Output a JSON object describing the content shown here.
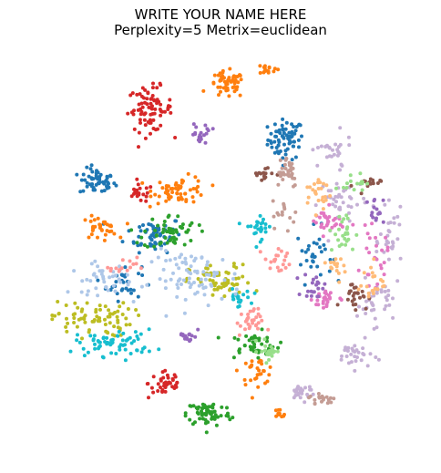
{
  "chart_data": {
    "type": "scatter",
    "title": "WRITE YOUR NAME HERE",
    "subtitle": "Perplexity=5 Metrix=euclidean",
    "xlabel": "",
    "ylabel": "",
    "axes_visible": false,
    "grid": false,
    "legend": "none",
    "xlim": [
      0,
      100
    ],
    "ylim": [
      0,
      100
    ],
    "marker_size": 2,
    "clusters": [
      {
        "color": "#1f77b4",
        "center": [
          66.0,
          78.5
        ],
        "spread": [
          4.0,
          4.5
        ],
        "count": 70
      },
      {
        "color": "#1f77b4",
        "center": [
          19.5,
          68.0
        ],
        "spread": [
          4.0,
          3.0
        ],
        "count": 55
      },
      {
        "color": "#1f77b4",
        "center": [
          33.5,
          55.0
        ],
        "spread": [
          6.5,
          4.0
        ],
        "count": 60
      },
      {
        "color": "#1f77b4",
        "center": [
          73.0,
          50.0
        ],
        "spread": [
          4.0,
          6.0
        ],
        "count": 30
      },
      {
        "color": "#1f77b4",
        "center": [
          26.0,
          43.0
        ],
        "spread": [
          4.0,
          4.0
        ],
        "count": 30
      },
      {
        "color": "#d62728",
        "center": [
          32.5,
          86.0
        ],
        "spread": [
          5.0,
          5.0
        ],
        "count": 80
      },
      {
        "color": "#d62728",
        "center": [
          36.5,
          18.0
        ],
        "spread": [
          4.0,
          3.5
        ],
        "count": 40
      },
      {
        "color": "#d62728",
        "center": [
          30.0,
          65.0
        ],
        "spread": [
          3.0,
          2.0
        ],
        "count": 20
      },
      {
        "color": "#ff7f0e",
        "center": [
          51.5,
          92.0
        ],
        "spread": [
          4.0,
          3.0
        ],
        "count": 55
      },
      {
        "color": "#ff7f0e",
        "center": [
          40.0,
          66.0
        ],
        "spread": [
          6.0,
          3.0
        ],
        "count": 60
      },
      {
        "color": "#ff7f0e",
        "center": [
          59.0,
          21.0
        ],
        "spread": [
          4.0,
          3.0
        ],
        "count": 30
      },
      {
        "color": "#ff7f0e",
        "center": [
          20.0,
          56.5
        ],
        "spread": [
          4.0,
          2.5
        ],
        "count": 35
      },
      {
        "color": "#ff7f0e",
        "center": [
          61.0,
          96.0
        ],
        "spread": [
          2.5,
          1.5
        ],
        "count": 15
      },
      {
        "color": "#ff7f0e",
        "center": [
          64.0,
          10.0
        ],
        "spread": [
          2.0,
          1.5
        ],
        "count": 10
      },
      {
        "color": "#2ca02c",
        "center": [
          47.0,
          10.5
        ],
        "spread": [
          5.0,
          3.0
        ],
        "count": 70
      },
      {
        "color": "#2ca02c",
        "center": [
          37.5,
          55.5
        ],
        "spread": [
          6.0,
          4.0
        ],
        "count": 55
      },
      {
        "color": "#2ca02c",
        "center": [
          58.0,
          27.5
        ],
        "spread": [
          6.0,
          3.0
        ],
        "count": 45
      },
      {
        "color": "#bcbd22",
        "center": [
          18.0,
          34.0
        ],
        "spread": [
          9.0,
          4.0
        ],
        "count": 75
      },
      {
        "color": "#bcbd22",
        "center": [
          50.0,
          43.0
        ],
        "spread": [
          7.0,
          4.0
        ],
        "count": 60
      },
      {
        "color": "#17becf",
        "center": [
          24.0,
          28.0
        ],
        "spread": [
          9.0,
          3.0
        ],
        "count": 65
      },
      {
        "color": "#17becf",
        "center": [
          54.0,
          39.0
        ],
        "spread": [
          3.0,
          2.0
        ],
        "count": 20
      },
      {
        "color": "#17becf",
        "center": [
          59.5,
          57.0
        ],
        "spread": [
          3.0,
          3.0
        ],
        "count": 25
      },
      {
        "color": "#aec7e8",
        "center": [
          44.0,
          44.0
        ],
        "spread": [
          10.0,
          6.0
        ],
        "count": 80
      },
      {
        "color": "#aec7e8",
        "center": [
          20.5,
          44.0
        ],
        "spread": [
          7.0,
          3.5
        ],
        "count": 40
      },
      {
        "color": "#c5b0d5",
        "center": [
          80.0,
          63.0
        ],
        "spread": [
          5.0,
          6.0
        ],
        "count": 40
      },
      {
        "color": "#c5b0d5",
        "center": [
          88.0,
          38.0
        ],
        "spread": [
          4.0,
          5.0
        ],
        "count": 35
      },
      {
        "color": "#c5b0d5",
        "center": [
          83.0,
          25.0
        ],
        "spread": [
          4.0,
          3.0
        ],
        "count": 30
      },
      {
        "color": "#c5b0d5",
        "center": [
          70.0,
          16.0
        ],
        "spread": [
          3.0,
          2.0
        ],
        "count": 25
      },
      {
        "color": "#c5b0d5",
        "center": [
          92.0,
          53.0
        ],
        "spread": [
          2.5,
          7.0
        ],
        "count": 30
      },
      {
        "color": "#c5b0d5",
        "center": [
          77.0,
          75.0
        ],
        "spread": [
          5.0,
          4.0
        ],
        "count": 25
      },
      {
        "color": "#e377c2",
        "center": [
          76.0,
          58.0
        ],
        "spread": [
          4.0,
          3.0
        ],
        "count": 30
      },
      {
        "color": "#e377c2",
        "center": [
          76.0,
          39.0
        ],
        "spread": [
          3.0,
          3.0
        ],
        "count": 25
      },
      {
        "color": "#e377c2",
        "center": [
          88.0,
          49.0
        ],
        "spread": [
          3.0,
          6.0
        ],
        "count": 25
      },
      {
        "color": "#9467bd",
        "center": [
          45.0,
          80.0
        ],
        "spread": [
          2.5,
          2.5
        ],
        "count": 20
      },
      {
        "color": "#9467bd",
        "center": [
          73.0,
          42.0
        ],
        "spread": [
          2.5,
          3.0
        ],
        "count": 20
      },
      {
        "color": "#9467bd",
        "center": [
          88.0,
          61.0
        ],
        "spread": [
          2.0,
          3.0
        ],
        "count": 15
      },
      {
        "color": "#9467bd",
        "center": [
          42.0,
          30.0
        ],
        "spread": [
          2.0,
          2.0
        ],
        "count": 15
      },
      {
        "color": "#8c564b",
        "center": [
          83.0,
          40.0
        ],
        "spread": [
          3.0,
          3.0
        ],
        "count": 25
      },
      {
        "color": "#8c564b",
        "center": [
          86.0,
          67.0
        ],
        "spread": [
          3.0,
          2.0
        ],
        "count": 15
      },
      {
        "color": "#8c564b",
        "center": [
          60.0,
          70.0
        ],
        "spread": [
          2.5,
          2.0
        ],
        "count": 15
      },
      {
        "color": "#ff9896",
        "center": [
          57.0,
          33.0
        ],
        "spread": [
          3.0,
          3.0
        ],
        "count": 30
      },
      {
        "color": "#ff9896",
        "center": [
          26.0,
          47.0
        ],
        "spread": [
          3.0,
          2.0
        ],
        "count": 15
      },
      {
        "color": "#ff9896",
        "center": [
          64.0,
          48.0
        ],
        "spread": [
          3.0,
          3.0
        ],
        "count": 20
      },
      {
        "color": "#98df8a",
        "center": [
          80.0,
          55.0
        ],
        "spread": [
          3.0,
          5.0
        ],
        "count": 25
      },
      {
        "color": "#98df8a",
        "center": [
          62.0,
          26.0
        ],
        "spread": [
          2.5,
          2.5
        ],
        "count": 20
      },
      {
        "color": "#98df8a",
        "center": [
          83.0,
          68.0
        ],
        "spread": [
          2.5,
          2.0
        ],
        "count": 15
      },
      {
        "color": "#ffbb78",
        "center": [
          74.0,
          65.0
        ],
        "spread": [
          3.0,
          4.0
        ],
        "count": 25
      },
      {
        "color": "#ffbb78",
        "center": [
          87.0,
          43.0
        ],
        "spread": [
          3.0,
          5.0
        ],
        "count": 20
      },
      {
        "color": "#ffbb78",
        "center": [
          80.0,
          47.0
        ],
        "spread": [
          3.0,
          3.0
        ],
        "count": 15
      },
      {
        "color": "#c49c94",
        "center": [
          66.0,
          71.0
        ],
        "spread": [
          3.0,
          4.0
        ],
        "count": 35
      },
      {
        "color": "#c49c94",
        "center": [
          75.0,
          14.0
        ],
        "spread": [
          3.0,
          1.5
        ],
        "count": 20
      },
      {
        "color": "#c49c94",
        "center": [
          66.0,
          60.0
        ],
        "spread": [
          3.0,
          3.0
        ],
        "count": 15
      }
    ]
  }
}
